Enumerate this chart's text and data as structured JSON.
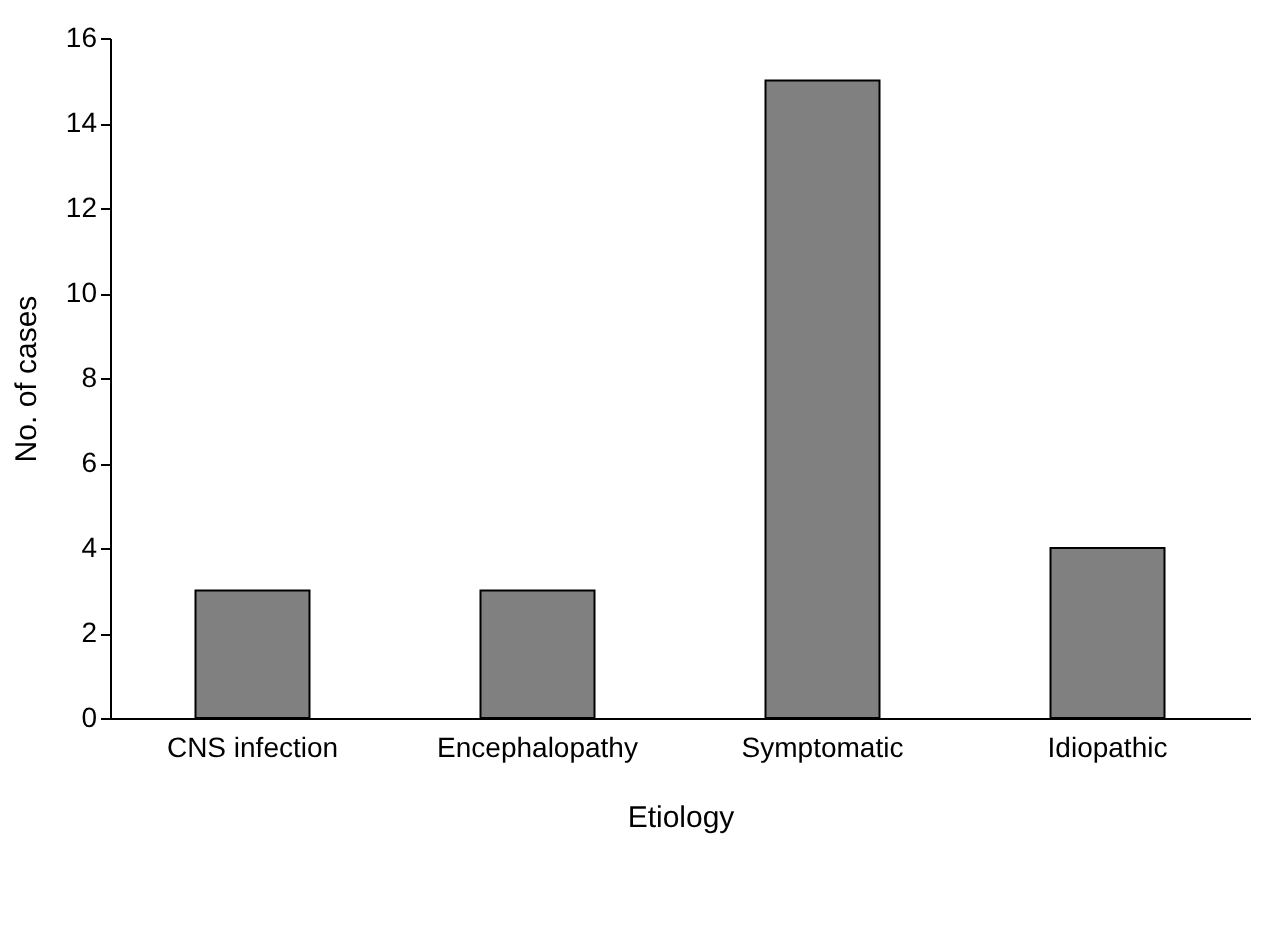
{
  "chart_data": {
    "type": "bar",
    "xlabel": "Etiology",
    "ylabel": "No. of cases",
    "categories": [
      "CNS infection",
      "Encephalopathy",
      "Symptomatic",
      "Idiopathic"
    ],
    "values": [
      3,
      3,
      15,
      4
    ],
    "color": "#808080",
    "ylim": [
      0,
      16
    ],
    "yticks": [
      0,
      2,
      4,
      6,
      8,
      10,
      12,
      14,
      16
    ],
    "grid": false
  }
}
